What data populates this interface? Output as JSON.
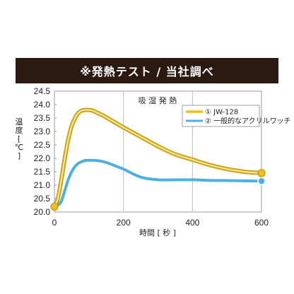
{
  "banner": {
    "title": "※発熱テスト / 当社調べ"
  },
  "chart_data": {
    "type": "line",
    "title": "吸 湿 発 熱",
    "xlabel": "時間 [ 秒 ]",
    "ylabel": "温度 [℃]",
    "xlim": [
      0,
      600
    ],
    "ylim": [
      20.0,
      24.5
    ],
    "xticks": [
      0,
      200,
      400,
      600
    ],
    "yticks": [
      20.0,
      20.5,
      21.0,
      21.5,
      22.0,
      22.5,
      23.0,
      23.5,
      24.0,
      24.5
    ],
    "grid": {
      "x": true,
      "y": false
    },
    "legend_position": "top-right",
    "series": [
      {
        "name": "① JW-128",
        "color": "#f0c020",
        "outline": "#c8a018",
        "marker_color": "#f0c020",
        "x": [
          0,
          10,
          20,
          30,
          40,
          50,
          60,
          70,
          80,
          90,
          100,
          110,
          120,
          140,
          160,
          180,
          200,
          250,
          300,
          350,
          400,
          450,
          500,
          550,
          600
        ],
        "y": [
          20.2,
          20.5,
          21.2,
          22.0,
          22.7,
          23.2,
          23.5,
          23.7,
          23.78,
          23.8,
          23.8,
          23.78,
          23.72,
          23.6,
          23.45,
          23.3,
          23.15,
          22.8,
          22.45,
          22.15,
          21.95,
          21.75,
          21.6,
          21.5,
          21.45
        ]
      },
      {
        "name": "② 一般的なアクリルワッチ",
        "color": "#4db0e0",
        "outline": "#4db0e0",
        "marker_color": "#4db0e0",
        "x": [
          0,
          10,
          20,
          30,
          40,
          50,
          60,
          70,
          80,
          90,
          100,
          120,
          140,
          160,
          180,
          200,
          250,
          300,
          350,
          400,
          450,
          500,
          550,
          600
        ],
        "y": [
          20.2,
          20.25,
          20.4,
          20.8,
          21.2,
          21.5,
          21.7,
          21.82,
          21.88,
          21.92,
          21.93,
          21.92,
          21.88,
          21.8,
          21.7,
          21.6,
          21.3,
          21.2,
          21.2,
          21.2,
          21.18,
          21.17,
          21.16,
          21.15
        ]
      }
    ]
  }
}
